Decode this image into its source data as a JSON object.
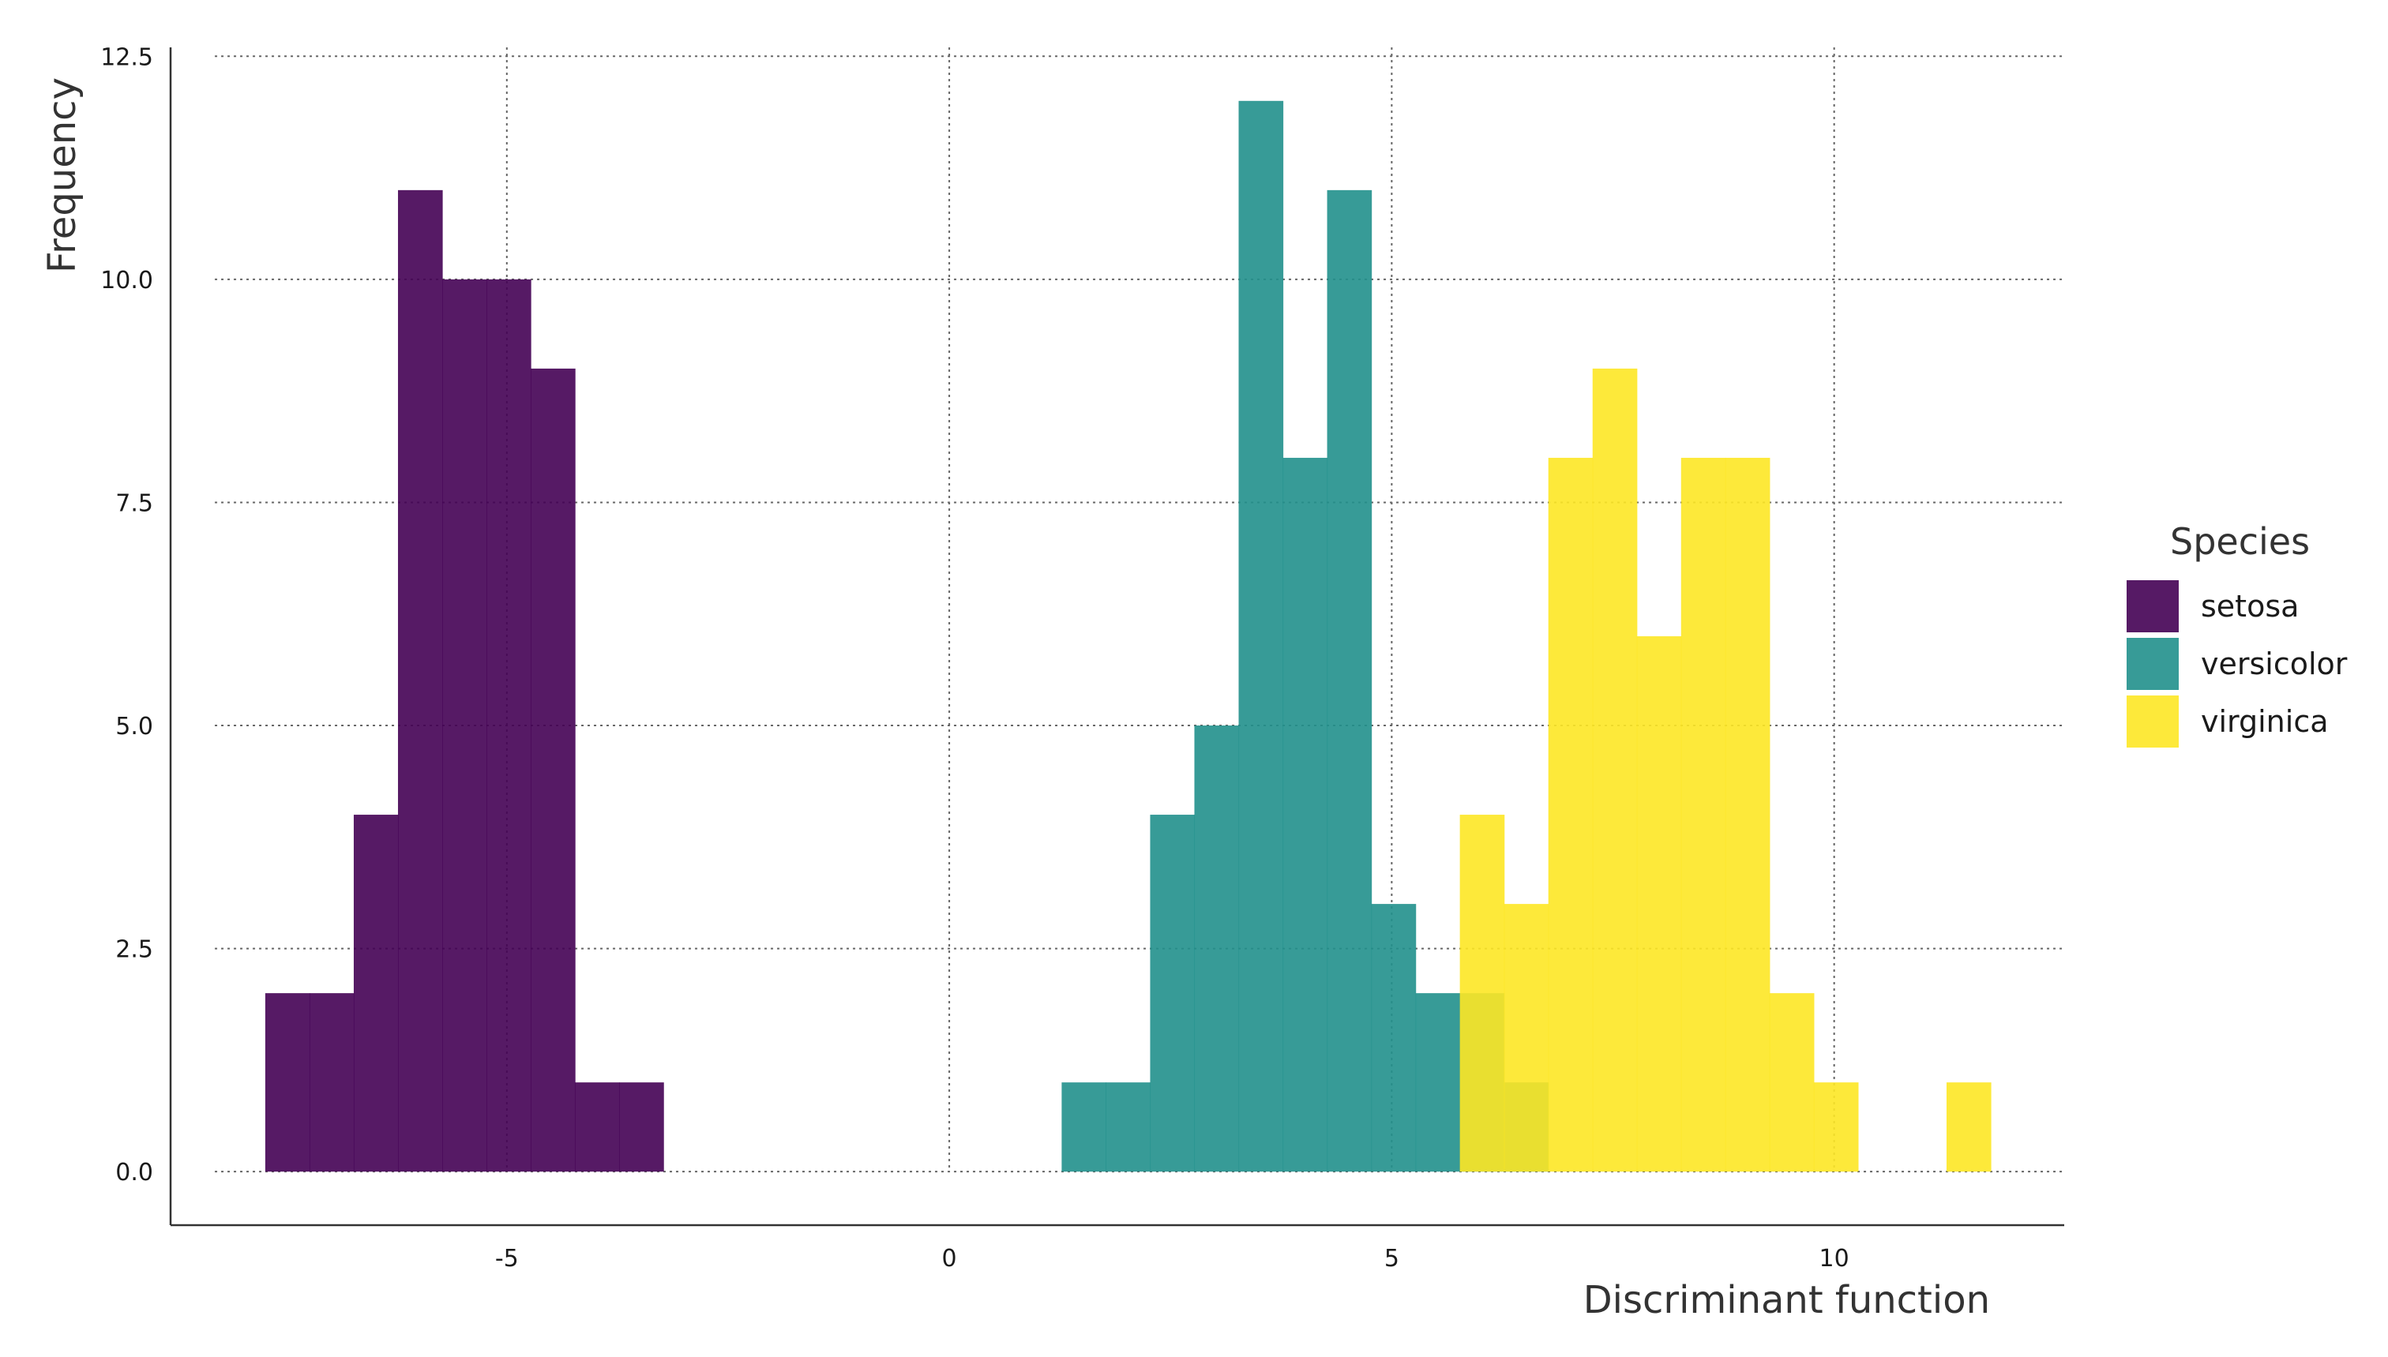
{
  "chart_data": {
    "type": "bar",
    "subtype": "overlaid-histogram",
    "title": "",
    "xlabel": "Discriminant function",
    "ylabel": "Frequency",
    "xlim": [
      -8.8,
      12.6
    ],
    "ylim": [
      -0.6,
      12.6
    ],
    "x_ticks": [
      -5,
      0,
      5,
      10
    ],
    "x_tick_labels": [
      "-5",
      "0",
      "5",
      "10"
    ],
    "y_ticks": [
      0,
      2.5,
      5,
      7.5,
      10,
      12.5
    ],
    "y_tick_labels": [
      "0.0",
      "2.5",
      "5.0",
      "7.5",
      "10.0",
      "12.5"
    ],
    "grid": true,
    "legend_title": "Species",
    "legend_position": "right",
    "bin_width": 0.5,
    "series": [
      {
        "name": "setosa",
        "color": "#440154",
        "bins": [
          {
            "x0": -7.73,
            "count": 2
          },
          {
            "x0": -7.23,
            "count": 2
          },
          {
            "x0": -6.73,
            "count": 4
          },
          {
            "x0": -6.23,
            "count": 11
          },
          {
            "x0": -5.73,
            "count": 10
          },
          {
            "x0": -5.23,
            "count": 10
          },
          {
            "x0": -4.73,
            "count": 9
          },
          {
            "x0": -4.23,
            "count": 1
          },
          {
            "x0": -3.73,
            "count": 1
          }
        ]
      },
      {
        "name": "versicolor",
        "color": "#21908C",
        "bins": [
          {
            "x0": 1.27,
            "count": 1
          },
          {
            "x0": 1.77,
            "count": 1
          },
          {
            "x0": 2.27,
            "count": 4
          },
          {
            "x0": 2.77,
            "count": 5
          },
          {
            "x0": 3.27,
            "count": 12
          },
          {
            "x0": 3.77,
            "count": 8
          },
          {
            "x0": 4.27,
            "count": 11
          },
          {
            "x0": 4.77,
            "count": 3
          },
          {
            "x0": 5.27,
            "count": 2
          },
          {
            "x0": 5.77,
            "count": 2
          },
          {
            "x0": 6.27,
            "count": 1
          }
        ]
      },
      {
        "name": "virginica",
        "color": "#FDE725",
        "bins": [
          {
            "x0": 5.77,
            "count": 4
          },
          {
            "x0": 6.27,
            "count": 3
          },
          {
            "x0": 6.77,
            "count": 8
          },
          {
            "x0": 7.27,
            "count": 9
          },
          {
            "x0": 7.77,
            "count": 6
          },
          {
            "x0": 8.27,
            "count": 8
          },
          {
            "x0": 8.77,
            "count": 8
          },
          {
            "x0": 9.27,
            "count": 2
          },
          {
            "x0": 9.77,
            "count": 1
          },
          {
            "x0": 11.27,
            "count": 1
          }
        ]
      }
    ]
  }
}
